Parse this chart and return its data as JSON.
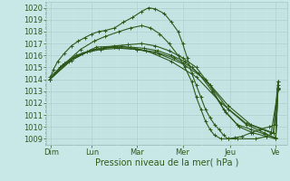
{
  "background_color": "#c8e8e8",
  "plot_bg_color": "#c8e8e8",
  "line_color": "#2d5a1b",
  "grid_major_color": "#a8c8c8",
  "grid_minor_color": "#b8d8d8",
  "marker": "+",
  "xlabel": "Pression niveau de la mer( hPa )",
  "xlabel_fontsize": 7,
  "tick_fontsize": 6,
  "ylim": [
    1008.5,
    1020.5
  ],
  "yticks": [
    1009,
    1010,
    1011,
    1012,
    1013,
    1014,
    1015,
    1016,
    1017,
    1018,
    1019,
    1020
  ],
  "xlim": [
    0,
    5.3
  ],
  "xtick_labels": [
    "Dim",
    "Lun",
    "Mar",
    "Mer",
    "Jeu",
    "Ve"
  ],
  "xtick_positions": [
    0.1,
    1.0,
    2.0,
    3.0,
    4.05,
    5.05
  ],
  "series": [
    [
      0.08,
      1014.0,
      0.15,
      1014.8,
      0.25,
      1015.5,
      0.4,
      1016.2,
      0.55,
      1016.8,
      0.7,
      1017.2,
      0.85,
      1017.5,
      1.0,
      1017.8,
      1.15,
      1018.0,
      1.3,
      1018.1,
      1.5,
      1018.3,
      1.7,
      1018.8,
      1.9,
      1019.2,
      2.1,
      1019.7,
      2.25,
      1020.0,
      2.4,
      1019.9,
      2.6,
      1019.5,
      2.75,
      1018.8,
      2.9,
      1018.0,
      3.0,
      1017.0,
      3.1,
      1015.8,
      3.2,
      1014.5,
      3.3,
      1013.5,
      3.4,
      1012.5,
      3.5,
      1011.5,
      3.6,
      1010.8,
      3.7,
      1010.2,
      3.8,
      1009.8,
      3.9,
      1009.3,
      4.0,
      1009.0,
      4.15,
      1009.1,
      4.3,
      1009.2,
      4.5,
      1009.5,
      4.7,
      1009.8,
      4.9,
      1010.0,
      5.05,
      1010.2,
      5.1,
      1013.8
    ],
    [
      0.08,
      1014.0,
      0.3,
      1015.0,
      0.6,
      1015.8,
      0.9,
      1016.3,
      1.2,
      1016.6,
      1.5,
      1016.8,
      1.8,
      1016.9,
      2.1,
      1017.0,
      2.4,
      1016.8,
      2.7,
      1016.4,
      3.0,
      1015.8,
      3.3,
      1015.0,
      3.6,
      1013.5,
      3.9,
      1011.5,
      4.2,
      1010.2,
      4.5,
      1009.8,
      4.8,
      1009.4,
      5.05,
      1009.1,
      5.1,
      1013.2
    ],
    [
      0.08,
      1014.0,
      0.35,
      1015.2,
      0.65,
      1016.0,
      0.95,
      1016.4,
      1.25,
      1016.6,
      1.55,
      1016.7,
      1.85,
      1016.7,
      2.15,
      1016.6,
      2.45,
      1016.4,
      2.75,
      1016.0,
      3.05,
      1015.5,
      3.35,
      1014.5,
      3.65,
      1013.0,
      3.95,
      1011.2,
      4.25,
      1010.0,
      4.55,
      1009.5,
      4.85,
      1009.2,
      5.05,
      1009.0,
      5.1,
      1013.5
    ],
    [
      0.08,
      1014.0,
      0.4,
      1015.3,
      0.8,
      1016.2,
      1.2,
      1016.5,
      1.6,
      1016.6,
      2.0,
      1016.5,
      2.4,
      1016.3,
      2.8,
      1015.8,
      3.2,
      1015.0,
      3.6,
      1013.5,
      4.0,
      1011.5,
      4.4,
      1010.2,
      4.8,
      1009.5,
      5.05,
      1009.0,
      5.1,
      1013.2
    ],
    [
      0.08,
      1014.0,
      0.5,
      1015.5,
      1.0,
      1016.5,
      1.5,
      1016.7,
      2.0,
      1016.5,
      2.5,
      1016.1,
      3.0,
      1015.3,
      3.5,
      1014.0,
      4.0,
      1011.8,
      4.5,
      1010.2,
      5.0,
      1009.5,
      5.1,
      1013.3
    ],
    [
      0.08,
      1014.0,
      0.55,
      1015.6,
      1.1,
      1016.7,
      1.65,
      1016.8,
      2.2,
      1016.4,
      2.75,
      1015.5,
      3.3,
      1014.2,
      3.85,
      1012.0,
      4.4,
      1010.3,
      4.95,
      1009.5,
      5.1,
      1013.1
    ],
    [
      0.08,
      1014.2,
      0.4,
      1015.3,
      0.75,
      1016.5,
      1.05,
      1017.2,
      1.3,
      1017.6,
      1.6,
      1018.0,
      1.85,
      1018.3,
      2.1,
      1018.5,
      2.3,
      1018.3,
      2.5,
      1017.8,
      2.7,
      1017.0,
      2.9,
      1016.0,
      3.05,
      1015.0,
      3.2,
      1013.8,
      3.3,
      1012.5,
      3.4,
      1011.5,
      3.5,
      1010.5,
      3.6,
      1009.8,
      3.7,
      1009.3,
      3.85,
      1009.0,
      4.0,
      1009.0,
      4.2,
      1009.0,
      4.6,
      1009.0,
      4.85,
      1009.2,
      5.0,
      1009.5,
      5.1,
      1013.8
    ]
  ]
}
